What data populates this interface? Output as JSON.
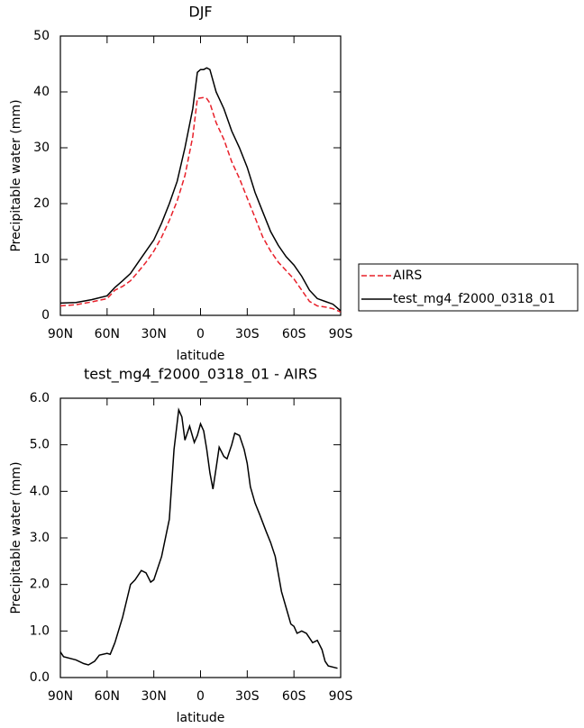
{
  "chart_data": [
    {
      "type": "line",
      "title": "DJF",
      "xlabel": "latitude",
      "ylabel": "Precipitable water (mm)",
      "x": [
        90,
        80,
        70,
        60,
        55,
        50,
        45,
        40,
        35,
        30,
        25,
        20,
        15,
        10,
        5,
        2,
        0,
        -2,
        -4,
        -6,
        -10,
        -15,
        -20,
        -25,
        -30,
        -35,
        -40,
        -45,
        -50,
        -55,
        -60,
        -65,
        -70,
        -75,
        -80,
        -85,
        -90
      ],
      "series": [
        {
          "name": "AIRS",
          "color": "#e8202a",
          "style": "dashed",
          "values": [
            1.7,
            1.9,
            2.4,
            3,
            4.5,
            5.2,
            6.2,
            7.8,
            9.5,
            11.5,
            14,
            17,
            20.5,
            25,
            32,
            38.8,
            38.9,
            39,
            38.8,
            38,
            34.5,
            31.5,
            27.5,
            24.5,
            21,
            17.5,
            14,
            11.5,
            9.5,
            8,
            6.5,
            4.5,
            2.5,
            1.7,
            1.5,
            1.2,
            0.6
          ]
        },
        {
          "name": "test_mg4_f2000_0318_01",
          "color": "#000000",
          "style": "solid",
          "values": [
            2.2,
            2.3,
            2.8,
            3.5,
            5,
            6.2,
            7.5,
            9.5,
            11.5,
            13.5,
            16.5,
            20,
            24,
            30,
            37,
            43.5,
            44,
            44,
            44.3,
            44,
            40,
            37,
            33,
            30,
            26.5,
            22,
            18.5,
            15,
            12.5,
            10.5,
            9,
            7,
            4.5,
            3,
            2.5,
            2,
            0.8
          ]
        }
      ],
      "xlim": [
        90,
        -90
      ],
      "xticks": [
        {
          "value": 90,
          "label": "90N"
        },
        {
          "value": 60,
          "label": "60N"
        },
        {
          "value": 30,
          "label": "30N"
        },
        0,
        {
          "value": -30,
          "label": "30S"
        },
        {
          "value": -60,
          "label": "60S"
        },
        {
          "value": -90,
          "label": "90S"
        }
      ],
      "ylim": [
        0,
        50
      ],
      "yticks": [
        0,
        10,
        20,
        30,
        40,
        50
      ],
      "legend": "outside-right"
    },
    {
      "type": "line",
      "title": "test_mg4_f2000_0318_01 - AIRS",
      "xlabel": "latitude",
      "ylabel": "Precipitable water (mm)",
      "x": [
        90,
        88,
        80,
        75,
        72,
        68,
        65,
        60,
        58,
        55,
        50,
        45,
        42,
        38,
        35,
        32,
        30,
        25,
        20,
        17,
        14,
        12,
        10,
        7,
        4,
        2,
        0,
        -2,
        -4,
        -6,
        -8,
        -10,
        -12,
        -15,
        -17,
        -20,
        -22,
        -25,
        -28,
        -30,
        -32,
        -35,
        -38,
        -42,
        -45,
        -48,
        -52,
        -55,
        -58,
        -60,
        -62,
        -65,
        -68,
        -72,
        -75,
        -78,
        -80,
        -82,
        -88
      ],
      "series": [
        {
          "color": "#000000",
          "style": "solid",
          "values": [
            0.55,
            0.45,
            0.38,
            0.3,
            0.27,
            0.35,
            0.48,
            0.52,
            0.5,
            0.75,
            1.3,
            2.0,
            2.1,
            2.3,
            2.25,
            2.05,
            2.1,
            2.6,
            3.4,
            4.9,
            5.75,
            5.6,
            5.1,
            5.4,
            5.05,
            5.2,
            5.45,
            5.3,
            4.9,
            4.4,
            4.05,
            4.5,
            4.95,
            4.75,
            4.7,
            5.0,
            5.25,
            5.2,
            4.9,
            4.6,
            4.1,
            3.75,
            3.5,
            3.15,
            2.9,
            2.6,
            1.85,
            1.5,
            1.15,
            1.1,
            0.95,
            1.0,
            0.95,
            0.75,
            0.8,
            0.6,
            0.35,
            0.25,
            0.2
          ]
        }
      ],
      "xlim": [
        90,
        -90
      ],
      "xticks": [
        {
          "value": 90,
          "label": "90N"
        },
        {
          "value": 60,
          "label": "60N"
        },
        {
          "value": 30,
          "label": "30N"
        },
        0,
        {
          "value": -30,
          "label": "30S"
        },
        {
          "value": -60,
          "label": "60S"
        },
        {
          "value": -90,
          "label": "90S"
        }
      ],
      "ylim": [
        0,
        6
      ],
      "yticks": [
        {
          "value": 0,
          "label": "0.0"
        },
        {
          "value": 1,
          "label": "1.0"
        },
        {
          "value": 2,
          "label": "2.0"
        },
        {
          "value": 3,
          "label": "3.0"
        },
        {
          "value": 4,
          "label": "4.0"
        },
        {
          "value": 5,
          "label": "5.0"
        },
        {
          "value": 6,
          "label": "6.0"
        }
      ]
    }
  ]
}
